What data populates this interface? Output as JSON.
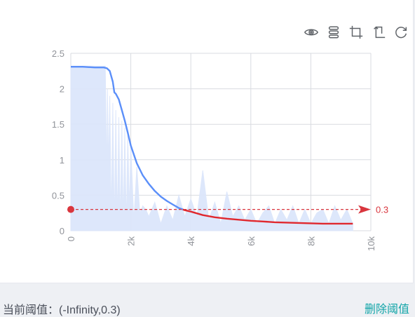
{
  "toolbar": {
    "icons": [
      "eye-icon",
      "layers-icon",
      "crop-icon",
      "rotate-crop-icon",
      "refresh-icon"
    ]
  },
  "colors": {
    "line_above": "#5b8ff9",
    "line_below": "#e0282e",
    "raw_series": "#dce6fb",
    "threshold": "#d9363e",
    "grid": "#d9dbe0",
    "axis_text": "#909399",
    "link": "#12a5a8"
  },
  "footer": {
    "threshold_label": "当前阈值：(-Infinity,0.3)",
    "delete_label": "删除阈值"
  },
  "chart_data": {
    "type": "line",
    "x_ticks": [
      "0",
      "2k",
      "4k",
      "6k",
      "8k",
      "10k"
    ],
    "y_ticks": [
      "0",
      "0.5",
      "1",
      "1.5",
      "2",
      "2.5"
    ],
    "xlim": [
      0,
      10000
    ],
    "ylim": [
      0,
      2.5
    ],
    "x_tick_rotation": "vertical",
    "grid": true,
    "threshold": {
      "value": 0.3,
      "label": "0.3"
    },
    "series": [
      {
        "type": "line",
        "x": [
          0,
          400,
          800,
          1000,
          1100,
          1200,
          1300,
          1400,
          1450,
          1500,
          1600,
          1700,
          1800,
          1900,
          2000,
          2200,
          2400,
          2600,
          2800,
          3000,
          3200,
          3400,
          3600,
          3800,
          4000,
          4400,
          4800,
          5200,
          5600,
          6000,
          6400,
          6800,
          7200,
          7600,
          8000,
          8400,
          8800,
          9200,
          9400
        ],
        "y": [
          2.31,
          2.31,
          2.3,
          2.3,
          2.3,
          2.29,
          2.25,
          2.1,
          1.95,
          1.93,
          1.85,
          1.7,
          1.55,
          1.38,
          1.2,
          0.95,
          0.78,
          0.66,
          0.56,
          0.48,
          0.42,
          0.37,
          0.32,
          0.29,
          0.27,
          0.22,
          0.19,
          0.17,
          0.155,
          0.14,
          0.13,
          0.12,
          0.115,
          0.11,
          0.105,
          0.1,
          0.1,
          0.1,
          0.1
        ]
      },
      {
        "type": "area",
        "x": [
          0,
          1150,
          1200,
          1220,
          1260,
          1300,
          1350,
          1400,
          1450,
          1500,
          1550,
          1600,
          1650,
          1700,
          1750,
          1800,
          1850,
          1900,
          1950,
          2000,
          2100,
          2200,
          2300,
          2400,
          2500,
          2600,
          2800,
          3000,
          3200,
          3400,
          3600,
          3800,
          4000,
          4200,
          4400,
          4600,
          4800,
          5000,
          5200,
          5400,
          5600,
          5800,
          6000,
          6200,
          6400,
          6600,
          6800,
          7000,
          7200,
          7400,
          7600,
          7800,
          8000,
          8200,
          8400,
          8600,
          8800,
          9000,
          9200,
          9400
        ],
        "y": [
          2.32,
          2.32,
          0.7,
          2.0,
          0.9,
          1.9,
          0.15,
          1.8,
          0.05,
          1.7,
          0.1,
          1.6,
          0.05,
          1.55,
          0.08,
          1.45,
          0.05,
          1.35,
          0.3,
          1.2,
          0.15,
          0.9,
          0.25,
          0.35,
          0.3,
          0.2,
          0.4,
          0.1,
          0.35,
          0.15,
          0.5,
          0.2,
          0.45,
          0.2,
          0.85,
          0.15,
          0.4,
          0.1,
          0.55,
          0.2,
          0.35,
          0.15,
          0.3,
          0.1,
          0.25,
          0.35,
          0.1,
          0.3,
          0.15,
          0.35,
          0.1,
          0.3,
          0.1,
          0.25,
          0.3,
          0.1,
          0.35,
          0.15,
          0.3,
          0.1
        ]
      }
    ]
  }
}
